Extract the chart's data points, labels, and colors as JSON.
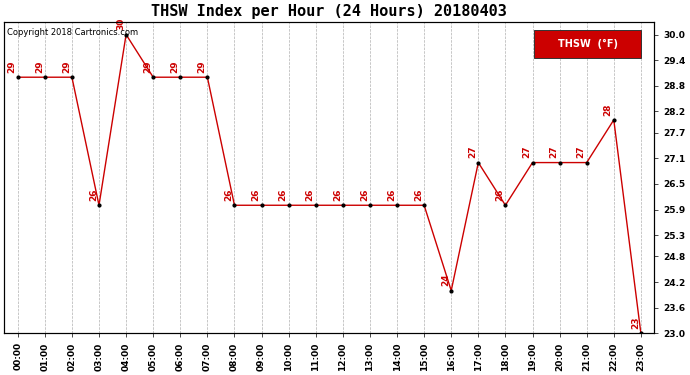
{
  "title": "THSW Index per Hour (24 Hours) 20180403",
  "copyright": "Copyright 2018 Cartronics.com",
  "legend_label": "THSW  (°F)",
  "hours": [
    "00:00",
    "01:00",
    "02:00",
    "03:00",
    "04:00",
    "05:00",
    "06:00",
    "07:00",
    "08:00",
    "09:00",
    "10:00",
    "11:00",
    "12:00",
    "13:00",
    "14:00",
    "15:00",
    "16:00",
    "17:00",
    "18:00",
    "19:00",
    "20:00",
    "21:00",
    "22:00",
    "23:00"
  ],
  "values": [
    29,
    29,
    29,
    26,
    30,
    29,
    29,
    29,
    26,
    26,
    26,
    26,
    26,
    26,
    26,
    26,
    24,
    27,
    26,
    27,
    27,
    27,
    28,
    23
  ],
  "ylim_min": 23.0,
  "ylim_max": 30.3,
  "yticks": [
    23.0,
    23.6,
    24.2,
    24.8,
    25.3,
    25.9,
    26.5,
    27.1,
    27.7,
    28.2,
    28.8,
    29.4,
    30.0
  ],
  "line_color": "#cc0000",
  "marker_color": "#000000",
  "bg_color": "#ffffff",
  "grid_color": "#b0b0b0",
  "title_fontsize": 11,
  "tick_fontsize": 6.5,
  "annot_fontsize": 6.5,
  "copyright_fontsize": 6,
  "legend_bg": "#cc0000",
  "legend_fg": "#ffffff",
  "legend_fontsize": 7
}
